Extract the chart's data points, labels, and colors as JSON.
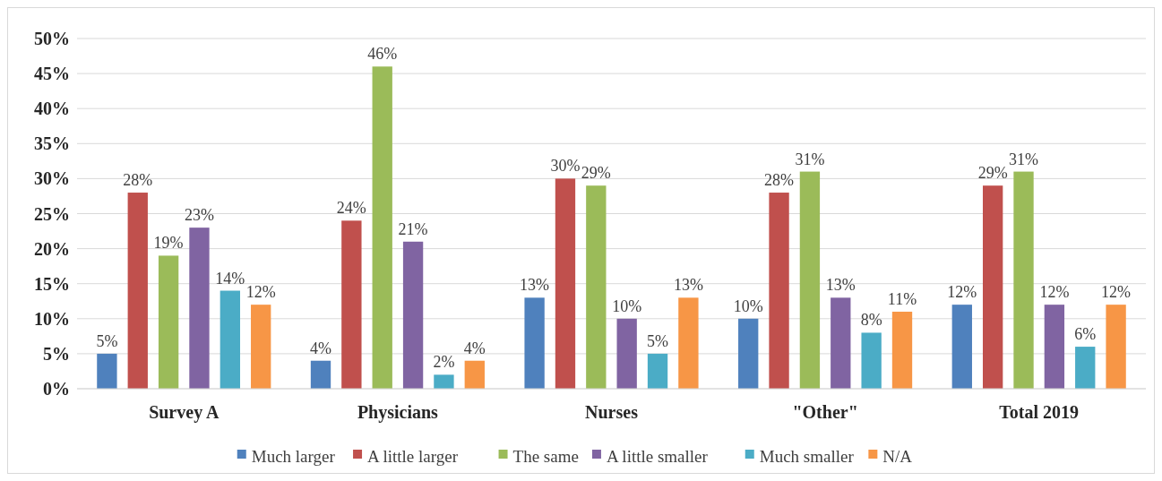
{
  "chart_data": {
    "type": "bar",
    "categories": [
      "Survey A",
      "Physicians",
      "Nurses",
      "\"Other\"",
      "Total 2019"
    ],
    "series": [
      {
        "name": "Much larger",
        "color": "#4f81bd",
        "values": [
          5,
          4,
          13,
          10,
          12
        ],
        "value_labels": [
          "5%",
          "4%",
          "13%",
          "10%",
          "12%"
        ]
      },
      {
        "name": "A little larger",
        "color": "#c0504d",
        "values": [
          28,
          24,
          30,
          28,
          29
        ],
        "value_labels": [
          "28%",
          "24%",
          "30%",
          "28%",
          "29%"
        ]
      },
      {
        "name": "The same",
        "color": "#9bbb59",
        "values": [
          19,
          46,
          29,
          31,
          31
        ],
        "value_labels": [
          "19%",
          "46%",
          "29%",
          "31%",
          "31%"
        ]
      },
      {
        "name": "A little smaller",
        "color": "#8064a2",
        "values": [
          23,
          21,
          10,
          13,
          12
        ],
        "value_labels": [
          "23%",
          "21%",
          "10%",
          "13%",
          "12%"
        ]
      },
      {
        "name": "Much smaller",
        "color": "#4bacc6",
        "values": [
          14,
          2,
          5,
          8,
          6
        ],
        "value_labels": [
          "14%",
          "2%",
          "5%",
          "8%",
          "6%"
        ]
      },
      {
        "name": "N/A",
        "color": "#f79646",
        "values": [
          12,
          4,
          13,
          11,
          12
        ],
        "value_labels": [
          "12%",
          "4%",
          "13%",
          "11%",
          "12%"
        ]
      }
    ],
    "ylim": [
      0,
      50
    ],
    "yticks": [
      {
        "value": 0,
        "label": "0%"
      },
      {
        "value": 5,
        "label": "5%"
      },
      {
        "value": 10,
        "label": "10%"
      },
      {
        "value": 15,
        "label": "15%"
      },
      {
        "value": 20,
        "label": "20%"
      },
      {
        "value": 25,
        "label": "25%"
      },
      {
        "value": 30,
        "label": "30%"
      },
      {
        "value": 35,
        "label": "35%"
      },
      {
        "value": 40,
        "label": "40%"
      },
      {
        "value": 45,
        "label": "45%"
      },
      {
        "value": 50,
        "label": "50%"
      }
    ],
    "grid": "y",
    "legend": "bottom"
  }
}
